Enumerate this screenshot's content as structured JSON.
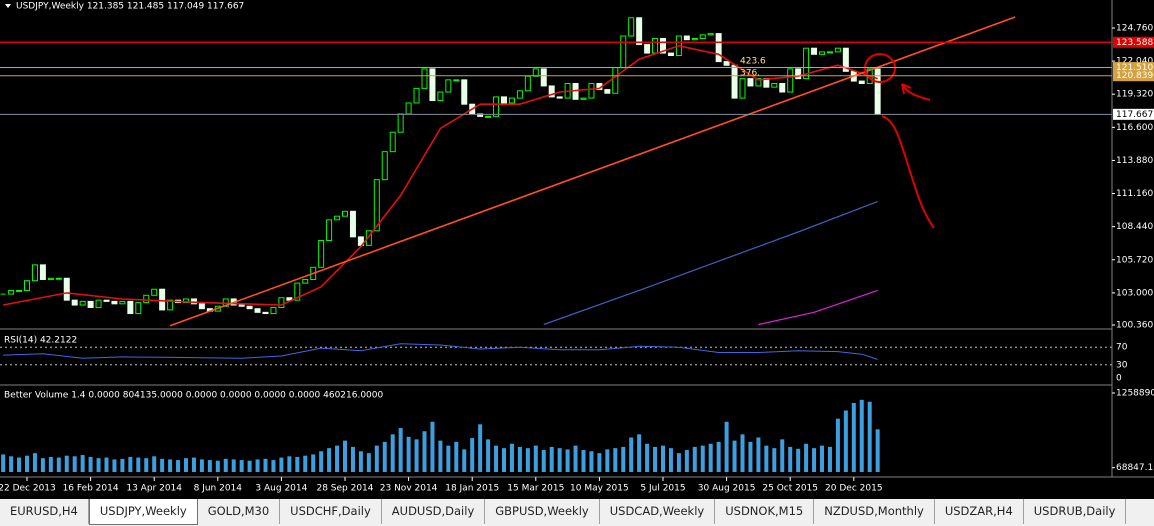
{
  "chart_data": {
    "type": "candlestick",
    "title": "USDJPY,Weekly  121.385 121.485 117.049 117.667",
    "categories": [
      null,
      null,
      null,
      "22 Dec 2013",
      null,
      null,
      null,
      null,
      null,
      null,
      null,
      "16 Feb 2014",
      null,
      null,
      null,
      null,
      null,
      null,
      null,
      "13 Apr 2014",
      null,
      null,
      null,
      null,
      null,
      null,
      null,
      "8 Jun 2014",
      null,
      null,
      null,
      null,
      null,
      null,
      null,
      "3 Aug 2014",
      null,
      null,
      null,
      null,
      null,
      null,
      null,
      "28 Sep 2014",
      null,
      null,
      null,
      null,
      null,
      null,
      null,
      "23 Nov 2014",
      null,
      null,
      null,
      null,
      null,
      null,
      null,
      "18 Jan 2015",
      null,
      null,
      null,
      null,
      null,
      null,
      null,
      "15 Mar 2015",
      null,
      null,
      null,
      null,
      null,
      null,
      null,
      "10 May 2015",
      null,
      null,
      null,
      null,
      null,
      null,
      null,
      "5 Jul 2015",
      null,
      null,
      null,
      null,
      null,
      null,
      null,
      "30 Aug 2015",
      null,
      null,
      null,
      null,
      null,
      null,
      null,
      "25 Oct 2015",
      null,
      null,
      null,
      null,
      null,
      null,
      null,
      "20 Dec 2015",
      null,
      null,
      null
    ],
    "values": [
      102.9,
      103.2,
      103.2,
      104.0,
      105.3,
      104.1,
      104.2,
      104.2,
      102.4,
      102.0,
      102.3,
      101.8,
      102.4,
      102.3,
      102.1,
      102.3,
      101.3,
      102.2,
      102.8,
      103.3,
      101.6,
      102.4,
      102.2,
      102.5,
      102.1,
      101.7,
      101.5,
      101.9,
      102.5,
      102.0,
      101.9,
      101.7,
      101.4,
      101.3,
      101.8,
      102.6,
      102.4,
      103.8,
      104.1,
      105.1,
      107.3,
      109.0,
      109.3,
      109.7,
      107.6,
      106.9,
      108.1,
      112.3,
      114.6,
      116.2,
      117.7,
      118.6,
      119.8,
      121.4,
      118.8,
      119.5,
      120.5,
      120.5,
      118.5,
      117.7,
      117.5,
      117.5,
      119.1,
      118.6,
      119.0,
      119.6,
      120.8,
      121.4,
      120.0,
      119.1,
      119.0,
      120.2,
      118.9,
      119.0,
      120.2,
      119.7,
      119.4,
      121.5,
      124.1,
      125.6,
      123.4,
      122.7,
      123.9,
      122.7,
      122.5,
      124.1,
      123.8,
      123.9,
      124.2,
      124.3,
      122.0,
      121.7,
      119.0,
      120.6,
      120.0,
      120.6,
      119.9,
      120.2,
      119.5,
      121.4,
      120.6,
      123.1,
      122.6,
      122.8,
      122.8,
      123.1,
      121.2,
      120.4,
      120.2,
      121.4,
      117.667
    ],
    "up_color": "#00ff00",
    "down_color": "#e8ffe8",
    "ylim": [
      100.36,
      124.76
    ],
    "yticks": [
      {
        "value": 124.76,
        "label": "124.760"
      },
      {
        "value": 122.04,
        "label": "122.040"
      },
      {
        "value": 119.32,
        "label": "119.320"
      },
      {
        "value": 116.6,
        "label": "116.600"
      },
      {
        "value": 113.88,
        "label": "113.880"
      },
      {
        "value": 111.16,
        "label": "111.160"
      },
      {
        "value": 108.44,
        "label": "108.440"
      },
      {
        "value": 105.72,
        "label": "105.720"
      },
      {
        "value": 103,
        "label": "103.000"
      },
      {
        "value": 100.36,
        "label": "100.360"
      }
    ],
    "levels": [
      {
        "value": 123.588,
        "label": "123.588",
        "color": "#e00000"
      },
      {
        "value": 121.51,
        "label": "121.510",
        "color": "#d4a040"
      },
      {
        "value": 120.839,
        "label": "120.839",
        "color": "#d4a040"
      },
      {
        "value": 117.667,
        "label": "117.667",
        "color": "#8090a0"
      }
    ],
    "lines": [
      {
        "color": "#e01010",
        "x": [
          0,
          8,
          15,
          25,
          35,
          40,
          45,
          50,
          55,
          60,
          65,
          70,
          75,
          80,
          85,
          90,
          95,
          100,
          105,
          110
        ],
        "values": [
          102.0,
          103.0,
          102.5,
          102.2,
          102.0,
          103.5,
          106.8,
          111,
          116.5,
          118.5,
          118.5,
          119.5,
          119.8,
          122.2,
          123.3,
          122.6,
          120.5,
          120.8,
          121.7,
          120.6
        ]
      },
      {
        "color": "#4060c0",
        "x": [
          68,
          80,
          90,
          100,
          110
        ],
        "values": [
          100.4,
          103.2,
          105.6,
          108.0,
          110.5
        ]
      },
      {
        "color": "#e020e0",
        "x": [
          95,
          102,
          110
        ],
        "values": [
          100.4,
          101.4,
          103.2
        ]
      },
      {
        "color": "#ff5020",
        "x": [
          21,
          127.3
        ],
        "values": [
          100.3,
          125.66
        ]
      }
    ],
    "annotations": [
      "423.6",
      "376."
    ],
    "rsi": {
      "label": "RSI(14) 42.2122",
      "ylim": [
        0,
        100
      ],
      "yticks": [
        70,
        30,
        0
      ],
      "color": "#4169e1",
      "x": [
        0,
        5,
        10,
        15,
        20,
        25,
        30,
        35,
        40,
        45,
        50,
        55,
        60,
        65,
        70,
        75,
        80,
        85,
        90,
        95,
        100,
        105,
        108,
        110
      ],
      "values": [
        52,
        55,
        45,
        48,
        47,
        46,
        45,
        50,
        68,
        62,
        78,
        75,
        66,
        70,
        64,
        64,
        72,
        70,
        58,
        58,
        62,
        60,
        54,
        42.2122
      ]
    },
    "volume": {
      "label": "Better Volume 1.4 0.0000 804135.0000 0.0000 0.0000 0.0000 0.0000 460216.0000",
      "ylim": [
        0,
        1258890
      ],
      "yticks": [
        {
          "value": 1258890,
          "label": "1258890."
        },
        {
          "value": 68847.1,
          "label": "68847.1"
        }
      ],
      "color": "#3ca0e0",
      "values": [
        280000,
        250000,
        230000,
        260000,
        300000,
        220000,
        240000,
        230000,
        260000,
        250000,
        270000,
        240000,
        220000,
        230000,
        200000,
        210000,
        240000,
        230000,
        220000,
        250000,
        210000,
        200000,
        190000,
        220000,
        230000,
        200000,
        190000,
        180000,
        210000,
        200000,
        190000,
        180000,
        200000,
        210000,
        190000,
        230000,
        250000,
        240000,
        260000,
        280000,
        330000,
        380000,
        420000,
        500000,
        400000,
        330000,
        300000,
        420000,
        480000,
        600000,
        700000,
        560000,
        520000,
        650000,
        800000,
        500000,
        420000,
        480000,
        360000,
        540000,
        760000,
        520000,
        420000,
        380000,
        450000,
        400000,
        380000,
        420000,
        350000,
        400000,
        380000,
        360000,
        420000,
        350000,
        330000,
        300000,
        360000,
        380000,
        400000,
        550000,
        600000,
        450000,
        400000,
        420000,
        380000,
        300000,
        350000,
        400000,
        420000,
        450000,
        480000,
        800000,
        500000,
        600000,
        480000,
        550000,
        420000,
        380000,
        520000,
        400000,
        370000,
        450000,
        380000,
        420000,
        400000,
        850000,
        980000,
        1100000,
        1150000,
        1120000,
        680000
      ]
    }
  },
  "tabs": [
    "EURUSD,H4",
    "USDJPY,Weekly",
    "GOLD,M30",
    "USDCHF,Daily",
    "AUDUSD,Daily",
    "GBPUSD,Weekly",
    "USDCAD,Weekly",
    "USDNOK,M15",
    "NZDUSD,Monthly",
    "USDZAR,H4",
    "USDRUB,Daily"
  ]
}
